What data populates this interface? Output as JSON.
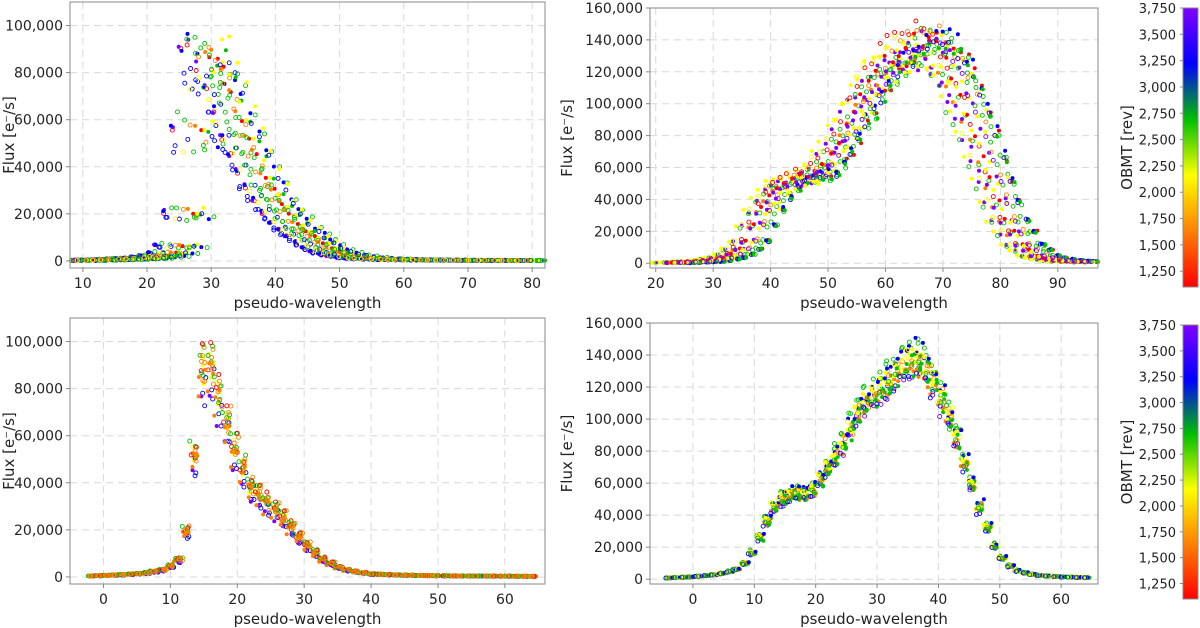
{
  "chart_data": [
    {
      "type": "scatter",
      "panel": "top-left",
      "xlabel": "pseudo-wavelength",
      "ylabel": "Flux [e⁻/s]",
      "xlim": [
        8,
        82
      ],
      "ylim": [
        -3000,
        110000
      ],
      "xticks": [
        10,
        20,
        30,
        40,
        50,
        60,
        70,
        80
      ],
      "yticks": [
        0,
        20000,
        40000,
        60000,
        80000,
        100000
      ],
      "ytick_labels": [
        "0",
        "20,000",
        "40,000",
        "60,000",
        "80,000",
        "100,000"
      ],
      "profile": {
        "x": [
          10,
          15,
          20,
          23,
          25,
          26,
          27,
          28,
          29,
          30,
          31,
          33,
          35,
          38,
          40,
          43,
          45,
          48,
          50,
          53,
          55,
          60,
          65,
          70,
          75,
          80
        ],
        "y": [
          200,
          600,
          1200,
          2500,
          5000,
          12000,
          30000,
          65000,
          90000,
          95000,
          90000,
          75000,
          58000,
          38000,
          28000,
          17000,
          12000,
          6000,
          3500,
          1800,
          1200,
          600,
          400,
          300,
          250,
          200
        ]
      },
      "shift_range": [
        -4,
        4
      ],
      "scale_range": [
        0.8,
        1.1
      ],
      "grid": true
    },
    {
      "type": "scatter",
      "panel": "top-right",
      "xlabel": "pseudo-wavelength",
      "ylabel": "Flux [e⁻/s]",
      "xlim": [
        19,
        97
      ],
      "ylim": [
        -3000,
        160000
      ],
      "xticks": [
        20,
        30,
        40,
        50,
        60,
        70,
        80,
        90
      ],
      "yticks": [
        0,
        20000,
        40000,
        60000,
        80000,
        100000,
        120000,
        140000,
        160000
      ],
      "ytick_labels": [
        "0",
        "20,000",
        "40,000",
        "60,000",
        "80,000",
        "100,000",
        "120,000",
        "140,000",
        "160,000"
      ],
      "profile": {
        "x": [
          22,
          28,
          32,
          35,
          38,
          41,
          44,
          47,
          50,
          53,
          56,
          59,
          62,
          65,
          68,
          71,
          74,
          77,
          80,
          83,
          86,
          90,
          95
        ],
        "y": [
          300,
          1200,
          4000,
          12000,
          35000,
          50000,
          55000,
          56000,
          70000,
          90000,
          110000,
          125000,
          135000,
          140000,
          138000,
          120000,
          95000,
          60000,
          30000,
          12000,
          4000,
          1500,
          800
        ]
      },
      "shift_range": [
        -5,
        5
      ],
      "scale_range": [
        0.88,
        1.06
      ],
      "grid": true
    },
    {
      "type": "scatter",
      "panel": "bottom-left",
      "xlabel": "pseudo-wavelength",
      "ylabel": "Flux [e⁻/s]",
      "xlim": [
        -5,
        66
      ],
      "ylim": [
        -3000,
        110000
      ],
      "xticks": [
        0,
        10,
        20,
        30,
        40,
        50,
        60
      ],
      "yticks": [
        0,
        20000,
        40000,
        60000,
        80000,
        100000
      ],
      "ytick_labels": [
        "0",
        "20,000",
        "40,000",
        "60,000",
        "80,000",
        "100,000"
      ],
      "profile": {
        "x": [
          -2,
          2,
          6,
          9,
          11,
          12,
          13,
          14,
          15,
          16,
          17,
          18,
          20,
          22,
          24,
          26,
          28,
          30,
          33,
          36,
          40,
          45,
          50,
          55,
          60,
          64
        ],
        "y": [
          400,
          800,
          1500,
          3000,
          6000,
          12000,
          30000,
          65000,
          92000,
          88000,
          78000,
          68000,
          50000,
          38000,
          32000,
          27000,
          21000,
          14000,
          7000,
          3000,
          1200,
          700,
          500,
          350,
          300,
          250
        ]
      },
      "shift_range": [
        -0.5,
        0.5
      ],
      "scale_range": [
        0.85,
        1.12
      ],
      "grid": true
    },
    {
      "type": "scatter",
      "panel": "bottom-right",
      "xlabel": "pseudo-wavelength",
      "ylabel": "Flux [e⁻/s]",
      "xlim": [
        -7,
        66
      ],
      "ylim": [
        -3000,
        160000
      ],
      "xticks": [
        0,
        10,
        20,
        30,
        40,
        50,
        60
      ],
      "yticks": [
        0,
        20000,
        40000,
        60000,
        80000,
        100000,
        120000,
        140000,
        160000
      ],
      "ytick_labels": [
        "0",
        "20,000",
        "40,000",
        "60,000",
        "80,000",
        "100,000",
        "120,000",
        "140,000",
        "160,000"
      ],
      "profile": {
        "x": [
          -4,
          0,
          4,
          7,
          9,
          11,
          13,
          15,
          17,
          19,
          21,
          23,
          25,
          27,
          29,
          31,
          33,
          35,
          37,
          39,
          41,
          43,
          45,
          47,
          49,
          51,
          53,
          56,
          60,
          64
        ],
        "y": [
          800,
          1500,
          3000,
          6000,
          12000,
          28000,
          45000,
          53000,
          55000,
          54000,
          65000,
          78000,
          90000,
          108000,
          118000,
          122000,
          130000,
          140000,
          138000,
          128000,
          110000,
          90000,
          65000,
          42000,
          22000,
          10000,
          5000,
          2500,
          1500,
          1000
        ]
      },
      "shift_range": [
        -0.5,
        0.5
      ],
      "scale_range": [
        0.9,
        1.06
      ],
      "grid": true
    }
  ],
  "colorbars": [
    {
      "panel": "top",
      "label": "OBMT [rev]",
      "range": [
        1100,
        3750
      ],
      "ticks": [
        1250,
        1500,
        1750,
        2000,
        2250,
        2500,
        2750,
        3000,
        3250,
        3500,
        3750
      ],
      "tick_labels": [
        "1,250",
        "1,500",
        "1,750",
        "2,000",
        "2,250",
        "2,500",
        "2,750",
        "3,000",
        "3,250",
        "3,500",
        "3,750"
      ],
      "colors": [
        "#ff0000",
        "#ff8000",
        "#ffff00",
        "#00c000",
        "#0000ff",
        "#8000ff"
      ]
    },
    {
      "panel": "bottom",
      "label": "OBMT [rev]",
      "range": [
        1100,
        3750
      ],
      "ticks": [
        1250,
        1500,
        1750,
        2000,
        2250,
        2500,
        2750,
        3000,
        3250,
        3500,
        3750
      ],
      "tick_labels": [
        "1,250",
        "1,500",
        "1,750",
        "2,000",
        "2,250",
        "2,500",
        "2,750",
        "3,000",
        "3,250",
        "3,500",
        "3,750"
      ],
      "colors": [
        "#ff0000",
        "#ff8000",
        "#ffff00",
        "#00c000",
        "#0000ff",
        "#8000ff"
      ]
    }
  ]
}
